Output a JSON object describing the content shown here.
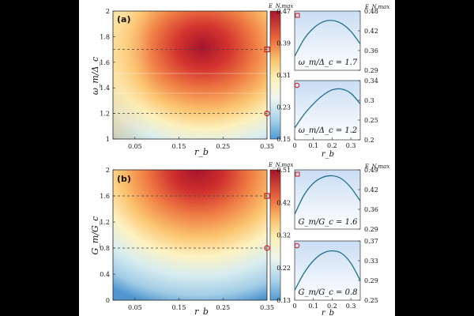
{
  "chart_data": [
    {
      "id": "a-main",
      "type": "heatmap",
      "panel_label": "(a)",
      "xlabel": "r_b",
      "ylabel": "ω_m/Δ_c",
      "xlim": [
        0,
        0.35
      ],
      "ylim": [
        1,
        2
      ],
      "x_ticks": [
        "0.05",
        "0.15",
        "0.25",
        "0.35"
      ],
      "y_ticks": [
        "1",
        "1.2",
        "1.4",
        "1.6",
        "1.8",
        "2"
      ],
      "z_peak": {
        "r_b": 0.2,
        "y": 1.65,
        "value": 0.47
      },
      "reference_lines": [
        {
          "y": 1.7,
          "marker": "square"
        },
        {
          "y": 1.2,
          "marker": "circle"
        }
      ],
      "colorbar": {
        "label": "E_N,max",
        "ticks": [
          "0.47",
          "0.39",
          "0.31",
          "0.23",
          "0.15"
        ],
        "range": [
          0.15,
          0.47
        ]
      }
    },
    {
      "id": "a-top",
      "type": "line",
      "caption": "ω_m/Δ_c = 1.7",
      "ylabel": "E_N,max",
      "xlim": [
        0,
        0.35
      ],
      "ylim": [
        0.29,
        0.48
      ],
      "y_ticks": [
        "0.48",
        "0.42",
        "0.36",
        "0.29"
      ],
      "marker": "square",
      "x": [
        0,
        0.05,
        0.1,
        0.15,
        0.2,
        0.25,
        0.3,
        0.35
      ],
      "y": [
        0.335,
        0.39,
        0.425,
        0.445,
        0.45,
        0.44,
        0.415,
        0.375
      ]
    },
    {
      "id": "a-bottom",
      "type": "line",
      "caption": "ω_m/Δ_c = 1.2",
      "xlabel": "r_b",
      "ylabel": "",
      "xlim": [
        0,
        0.35
      ],
      "ylim": [
        0.2,
        0.34
      ],
      "x_ticks": [
        "0",
        "0.1",
        "0.2",
        "0.3"
      ],
      "y_ticks": [
        "0.34",
        "0.3",
        "0.25",
        "0.2"
      ],
      "marker": "circle",
      "x": [
        0,
        0.05,
        0.1,
        0.15,
        0.2,
        0.25,
        0.3,
        0.35
      ],
      "y": [
        0.228,
        0.26,
        0.285,
        0.305,
        0.318,
        0.32,
        0.31,
        0.285
      ]
    },
    {
      "id": "b-main",
      "type": "heatmap",
      "panel_label": "(b)",
      "xlabel": "r_b",
      "ylabel": "G_m/G_c",
      "xlim": [
        0,
        0.35
      ],
      "ylim": [
        0,
        2
      ],
      "x_ticks": [
        "0.05",
        "0.15",
        "0.25",
        "0.35"
      ],
      "y_ticks": [
        "0",
        "0.4",
        "0.8",
        "1.2",
        "1.6",
        "2"
      ],
      "z_peak": {
        "r_b": 0.2,
        "y": 2.0,
        "value": 0.51
      },
      "reference_lines": [
        {
          "y": 1.6,
          "marker": "square"
        },
        {
          "y": 0.8,
          "marker": "circle"
        }
      ],
      "colorbar": {
        "label": "E_N,max",
        "ticks": [
          "0.51",
          "0.42",
          "0.32",
          "0.22",
          "0.13"
        ],
        "range": [
          0.13,
          0.51
        ]
      }
    },
    {
      "id": "b-top",
      "type": "line",
      "caption": "G_m/G_c = 1.6",
      "ylabel": "E_N,max",
      "xlim": [
        0,
        0.35
      ],
      "ylim": [
        0.29,
        0.49
      ],
      "y_ticks": [
        "0.49",
        "0.42",
        "0.36",
        "0.29"
      ],
      "marker": "square",
      "x": [
        0,
        0.05,
        0.1,
        0.15,
        0.2,
        0.25,
        0.3,
        0.35
      ],
      "y": [
        0.34,
        0.405,
        0.445,
        0.465,
        0.47,
        0.46,
        0.43,
        0.385
      ]
    },
    {
      "id": "b-bottom",
      "type": "line",
      "caption": "G_m/G_c = 0.8",
      "xlabel": "r_b",
      "ylabel": "",
      "xlim": [
        0,
        0.35
      ],
      "ylim": [
        0.25,
        0.37
      ],
      "x_ticks": [
        "0",
        "0.1",
        "0.2",
        "0.3"
      ],
      "y_ticks": [
        "0.37",
        "0.33",
        "0.29",
        "0.25"
      ],
      "marker": "circle",
      "x": [
        0,
        0.05,
        0.1,
        0.15,
        0.2,
        0.25,
        0.3,
        0.35
      ],
      "y": [
        0.27,
        0.305,
        0.33,
        0.345,
        0.35,
        0.345,
        0.325,
        0.29
      ]
    }
  ]
}
